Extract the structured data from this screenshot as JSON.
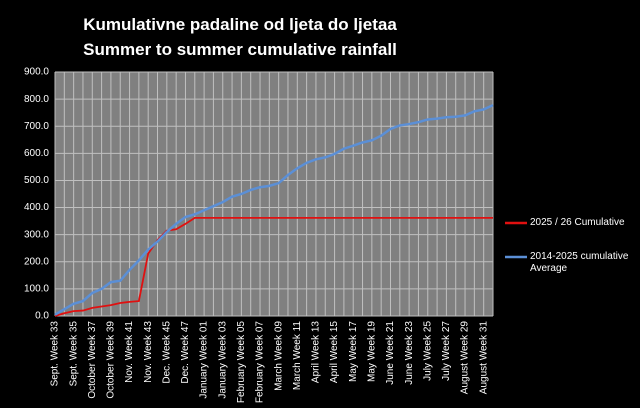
{
  "chart_data": {
    "type": "line",
    "title": "Kumulativne padaline od ljeta do ljetaa",
    "subtitle": "Summer to summer cumulative rainfall",
    "categories": [
      "Sept. Week 33",
      null,
      "Sept. Week 35",
      null,
      "October Week 37",
      null,
      "October Week 39",
      null,
      "Nov. Week 41",
      null,
      "Nov. Week 43",
      null,
      "Dec. Week 45",
      null,
      "Dec. Week 47",
      null,
      "January Week 01",
      null,
      "January Week 03",
      null,
      "February Week 05",
      null,
      "February Week 07",
      null,
      "March Week 09",
      null,
      "March Week 11",
      null,
      "April Week 13",
      null,
      "April Week 15",
      null,
      "May Week 17",
      null,
      "May Week 19",
      null,
      "June Week 21",
      null,
      "June Week 23",
      null,
      "July Week 25",
      null,
      "July Week 27",
      null,
      "August Week 29",
      null,
      "August Week 31",
      null
    ],
    "series": [
      {
        "name": "2025 / 26 Cumulative",
        "color": "#e01010",
        "values": [
          0,
          10,
          18,
          20,
          30,
          35,
          40,
          48,
          52,
          55,
          230,
          280,
          315,
          320,
          340,
          362,
          362,
          362,
          362,
          362,
          362,
          362,
          362,
          362,
          362,
          362,
          362,
          362,
          362,
          362,
          362,
          362,
          362,
          362,
          362,
          362,
          362,
          362,
          362,
          362,
          362,
          362,
          362,
          362,
          362,
          362,
          362,
          362
        ]
      },
      {
        "name": "2014-2025 cumulative Average",
        "color": "#5b8fd6",
        "values": [
          5,
          25,
          45,
          55,
          85,
          100,
          125,
          130,
          170,
          205,
          245,
          275,
          310,
          340,
          365,
          375,
          390,
          405,
          420,
          440,
          450,
          465,
          475,
          480,
          490,
          520,
          545,
          565,
          578,
          585,
          598,
          617,
          628,
          640,
          648,
          665,
          690,
          703,
          708,
          715,
          725,
          728,
          733,
          735,
          740,
          755,
          762,
          778
        ]
      }
    ],
    "ylim": [
      0,
      900
    ],
    "yticks": [
      {
        "value": 0,
        "label": "0.0"
      },
      {
        "value": 100,
        "label": "100.0"
      },
      {
        "value": 200,
        "label": "200.0"
      },
      {
        "value": 300,
        "label": "300.0"
      },
      {
        "value": 400,
        "label": "400.0"
      },
      {
        "value": 500,
        "label": "500.0"
      },
      {
        "value": 600,
        "label": "600.0"
      },
      {
        "value": 700,
        "label": "700.0"
      },
      {
        "value": 800,
        "label": "800.0"
      },
      {
        "value": 900,
        "label": "900.0"
      }
    ],
    "grid": true
  }
}
